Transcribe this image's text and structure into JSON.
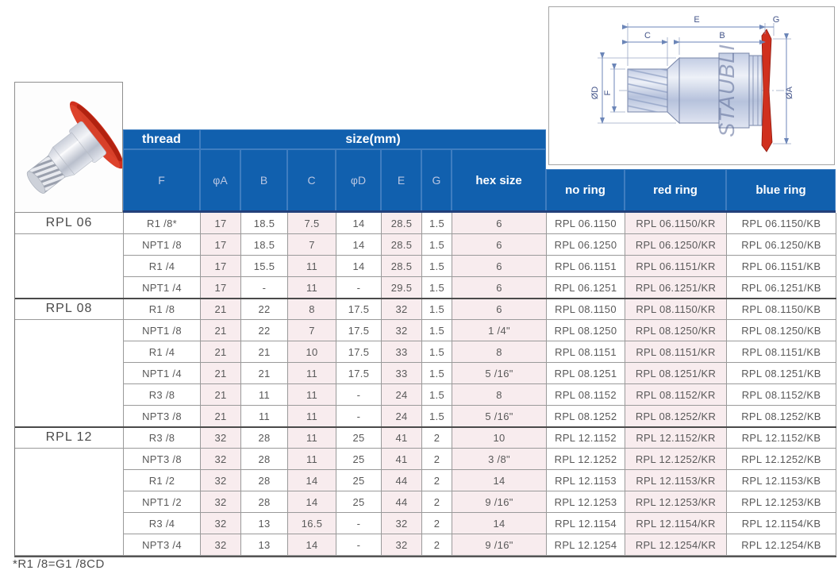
{
  "page": {
    "footnote": "*R1 /8=G1 /8CD"
  },
  "colors": {
    "header_blue": "#1160ae",
    "header_subtext": "#b9c6e2",
    "pink_column": "#f8ecee",
    "red_flange": "#d0301e",
    "cell_text": "#595959"
  },
  "drawing": {
    "body_label": "STAUBLI",
    "dim_labels": {
      "e": "E",
      "g": "G",
      "c": "C",
      "b": "B",
      "od": "ØD",
      "f": "F",
      "oa": "ØA"
    }
  },
  "table": {
    "header": {
      "thread": "thread",
      "size": "size(mm)",
      "sub": [
        "F",
        "φA",
        "B",
        "C",
        "φD",
        "E",
        "G",
        "hex size"
      ],
      "rings": [
        "no ring",
        "red ring",
        "blue ring"
      ]
    },
    "groups": [
      {
        "name": "RPL 06",
        "rows": [
          {
            "f": "R1 /8*",
            "a": "17",
            "b": "18.5",
            "c": "7.5",
            "d": "14",
            "e": "28.5",
            "g": "1.5",
            "hex": "6",
            "no": "RPL 06.1150",
            "kr": "RPL 06.1150/KR",
            "kb": "RPL 06.1150/KB"
          },
          {
            "f": "NPT1 /8",
            "a": "17",
            "b": "18.5",
            "c": "7",
            "d": "14",
            "e": "28.5",
            "g": "1.5",
            "hex": "6",
            "no": "RPL 06.1250",
            "kr": "RPL 06.1250/KR",
            "kb": "RPL 06.1250/KB"
          },
          {
            "f": "R1 /4",
            "a": "17",
            "b": "15.5",
            "c": "11",
            "d": "14",
            "e": "28.5",
            "g": "1.5",
            "hex": "6",
            "no": "RPL 06.1151",
            "kr": "RPL 06.1151/KR",
            "kb": "RPL 06.1151/KB"
          },
          {
            "f": "NPT1 /4",
            "a": "17",
            "b": "-",
            "c": "11",
            "d": "-",
            "e": "29.5",
            "g": "1.5",
            "hex": "6",
            "no": "RPL 06.1251",
            "kr": "RPL 06.1251/KR",
            "kb": "RPL 06.1251/KB"
          }
        ]
      },
      {
        "name": "RPL 08",
        "rows": [
          {
            "f": "R1 /8",
            "a": "21",
            "b": "22",
            "c": "8",
            "d": "17.5",
            "e": "32",
            "g": "1.5",
            "hex": "6",
            "no": "RPL 08.1150",
            "kr": "RPL 08.1150/KR",
            "kb": "RPL 08.1150/KB"
          },
          {
            "f": "NPT1 /8",
            "a": "21",
            "b": "22",
            "c": "7",
            "d": "17.5",
            "e": "32",
            "g": "1.5",
            "hex": "1 /4\"",
            "no": "RPL 08.1250",
            "kr": "RPL 08.1250/KR",
            "kb": "RPL 08.1250/KB"
          },
          {
            "f": "R1 /4",
            "a": "21",
            "b": "21",
            "c": "10",
            "d": "17.5",
            "e": "33",
            "g": "1.5",
            "hex": "8",
            "no": "RPL 08.1151",
            "kr": "RPL 08.1151/KR",
            "kb": "RPL 08.1151/KB"
          },
          {
            "f": "NPT1 /4",
            "a": "21",
            "b": "21",
            "c": "11",
            "d": "17.5",
            "e": "33",
            "g": "1.5",
            "hex": "5 /16\"",
            "no": "RPL 08.1251",
            "kr": "RPL 08.1251/KR",
            "kb": "RPL 08.1251/KB"
          },
          {
            "f": "R3 /8",
            "a": "21",
            "b": "11",
            "c": "11",
            "d": "-",
            "e": "24",
            "g": "1.5",
            "hex": "8",
            "no": "RPL 08.1152",
            "kr": "RPL 08.1152/KR",
            "kb": "RPL 08.1152/KB"
          },
          {
            "f": "NPT3 /8",
            "a": "21",
            "b": "11",
            "c": "11",
            "d": "-",
            "e": "24",
            "g": "1.5",
            "hex": "5 /16\"",
            "no": "RPL 08.1252",
            "kr": "RPL 08.1252/KR",
            "kb": "RPL 08.1252/KB"
          }
        ]
      },
      {
        "name": "RPL 12",
        "rows": [
          {
            "f": "R3 /8",
            "a": "32",
            "b": "28",
            "c": "11",
            "d": "25",
            "e": "41",
            "g": "2",
            "hex": "10",
            "no": "RPL 12.1152",
            "kr": "RPL 12.1152/KR",
            "kb": "RPL 12.1152/KB"
          },
          {
            "f": "NPT3 /8",
            "a": "32",
            "b": "28",
            "c": "11",
            "d": "25",
            "e": "41",
            "g": "2",
            "hex": "3 /8\"",
            "no": "RPL 12.1252",
            "kr": "RPL 12.1252/KR",
            "kb": "RPL 12.1252/KB"
          },
          {
            "f": "R1 /2",
            "a": "32",
            "b": "28",
            "c": "14",
            "d": "25",
            "e": "44",
            "g": "2",
            "hex": "14",
            "no": "RPL 12.1153",
            "kr": "RPL 12.1153/KR",
            "kb": "RPL 12.1153/KB"
          },
          {
            "f": "NPT1 /2",
            "a": "32",
            "b": "28",
            "c": "14",
            "d": "25",
            "e": "44",
            "g": "2",
            "hex": "9 /16\"",
            "no": "RPL 12.1253",
            "kr": "RPL 12.1253/KR",
            "kb": "RPL 12.1253/KB"
          },
          {
            "f": "R3 /4",
            "a": "32",
            "b": "13",
            "c": "16.5",
            "d": "-",
            "e": "32",
            "g": "2",
            "hex": "14",
            "no": "RPL 12.1154",
            "kr": "RPL 12.1154/KR",
            "kb": "RPL 12.1154/KB"
          },
          {
            "f": "NPT3 /4",
            "a": "32",
            "b": "13",
            "c": "14",
            "d": "-",
            "e": "32",
            "g": "2",
            "hex": "9 /16\"",
            "no": "RPL 12.1254",
            "kr": "RPL 12.1254/KR",
            "kb": "RPL 12.1254/KB"
          }
        ]
      }
    ]
  }
}
